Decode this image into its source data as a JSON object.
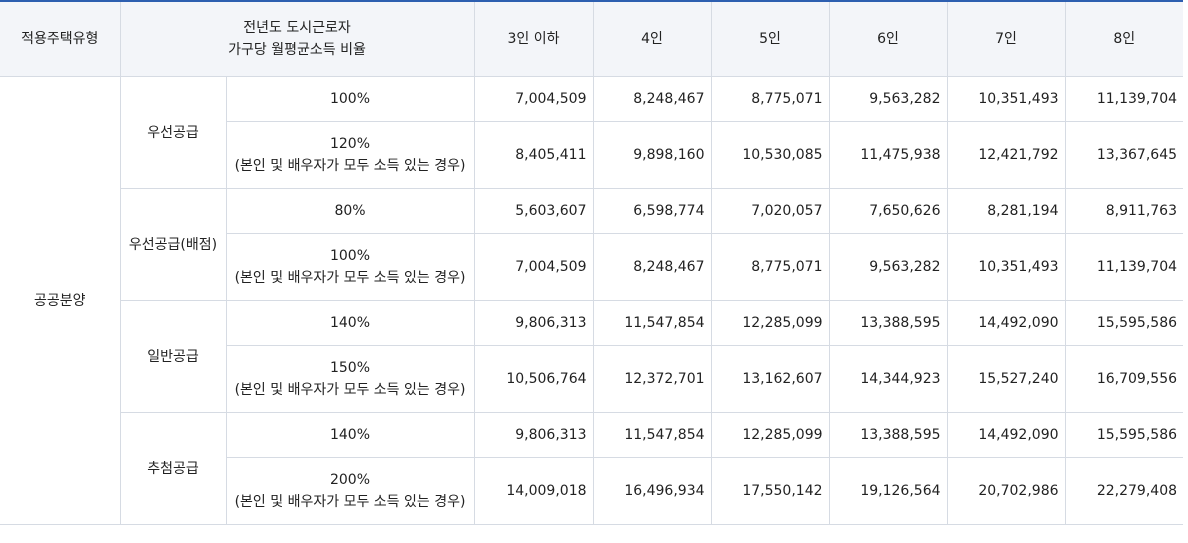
{
  "header": {
    "type_label": "적용주택유형",
    "ratio_label_line1": "전년도 도시근로자",
    "ratio_label_line2": "가구당 월평균소득 비율",
    "cols": [
      "3인 이하",
      "4인",
      "5인",
      "6인",
      "7인",
      "8인"
    ]
  },
  "housing_type": "공공분양",
  "note": "(본인 및 배우자가 모두 소득 있는 경우)",
  "groups": [
    {
      "name": "우선공급",
      "rows": [
        {
          "ratio": "100%",
          "values": [
            "7,004,509",
            "8,248,467",
            "8,775,071",
            "9,563,282",
            "10,351,493",
            "11,139,704"
          ]
        },
        {
          "ratio": "120%",
          "values": [
            "8,405,411",
            "9,898,160",
            "10,530,085",
            "11,475,938",
            "12,421,792",
            "13,367,645"
          ]
        }
      ]
    },
    {
      "name": "우선공급(배점)",
      "rows": [
        {
          "ratio": "80%",
          "values": [
            "5,603,607",
            "6,598,774",
            "7,020,057",
            "7,650,626",
            "8,281,194",
            "8,911,763"
          ]
        },
        {
          "ratio": "100%",
          "values": [
            "7,004,509",
            "8,248,467",
            "8,775,071",
            "9,563,282",
            "10,351,493",
            "11,139,704"
          ]
        }
      ]
    },
    {
      "name": "일반공급",
      "rows": [
        {
          "ratio": "140%",
          "values": [
            "9,806,313",
            "11,547,854",
            "12,285,099",
            "13,388,595",
            "14,492,090",
            "15,595,586"
          ]
        },
        {
          "ratio": "150%",
          "values": [
            "10,506,764",
            "12,372,701",
            "13,162,607",
            "14,344,923",
            "15,527,240",
            "16,709,556"
          ]
        }
      ]
    },
    {
      "name": "추첨공급",
      "rows": [
        {
          "ratio": "140%",
          "values": [
            "9,806,313",
            "11,547,854",
            "12,285,099",
            "13,388,595",
            "14,492,090",
            "15,595,586"
          ]
        },
        {
          "ratio": "200%",
          "values": [
            "14,009,018",
            "16,496,934",
            "17,550,142",
            "19,126,564",
            "20,702,986",
            "22,279,408"
          ]
        }
      ]
    }
  ]
}
